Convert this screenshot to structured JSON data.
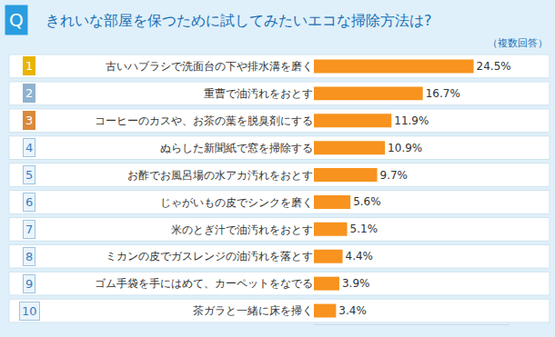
{
  "chart_data": {
    "type": "bar",
    "orientation": "horizontal",
    "title": "きれいな部屋を保つために試してみたいエコな掃除方法は?",
    "subtitle": "（複数回答）",
    "categories": [
      "古いハブラシで洗面台の下や排水溝を磨く",
      "重曹で油汚れをおとす",
      "コーヒーのカスや、お茶の葉を脱臭剤にする",
      "ぬらした新聞紙で窓を掃除する",
      "お酢でお風呂場の水アカ汚れをおとす",
      "じゃがいもの皮でシンクを磨く",
      "米のとぎ汁で油汚れをおとす",
      "ミカンの皮でガスレンジの油汚れを落とす",
      "ゴム手袋を手にはめて、カーペットをなでる",
      "茶ガラと一緒に床を掃く"
    ],
    "values": [
      24.5,
      16.7,
      11.9,
      10.9,
      9.7,
      5.6,
      5.1,
      4.4,
      3.9,
      3.4
    ],
    "value_labels": [
      "24.5%",
      "16.7%",
      "11.9%",
      "10.9%",
      "9.7%",
      "5.6%",
      "5.1%",
      "4.4%",
      "3.9%",
      "3.4%"
    ],
    "annotations": [
      {
        "text": "Q"
      },
      {
        "text": "1",
        "category": 0
      },
      {
        "text": "2",
        "category": 1
      },
      {
        "text": "3",
        "category": 2
      },
      {
        "text": "4",
        "category": 3
      },
      {
        "text": "5",
        "category": 4
      },
      {
        "text": "6",
        "category": 5
      },
      {
        "text": "7",
        "category": 6
      },
      {
        "text": "8",
        "category": 7
      },
      {
        "text": "9",
        "category": 8
      },
      {
        "text": "10",
        "category": 9
      }
    ],
    "color": "#f7931e",
    "xlim": [
      0,
      30
    ],
    "data_labels": true,
    "tick_labels": "y",
    "grid": false
  }
}
